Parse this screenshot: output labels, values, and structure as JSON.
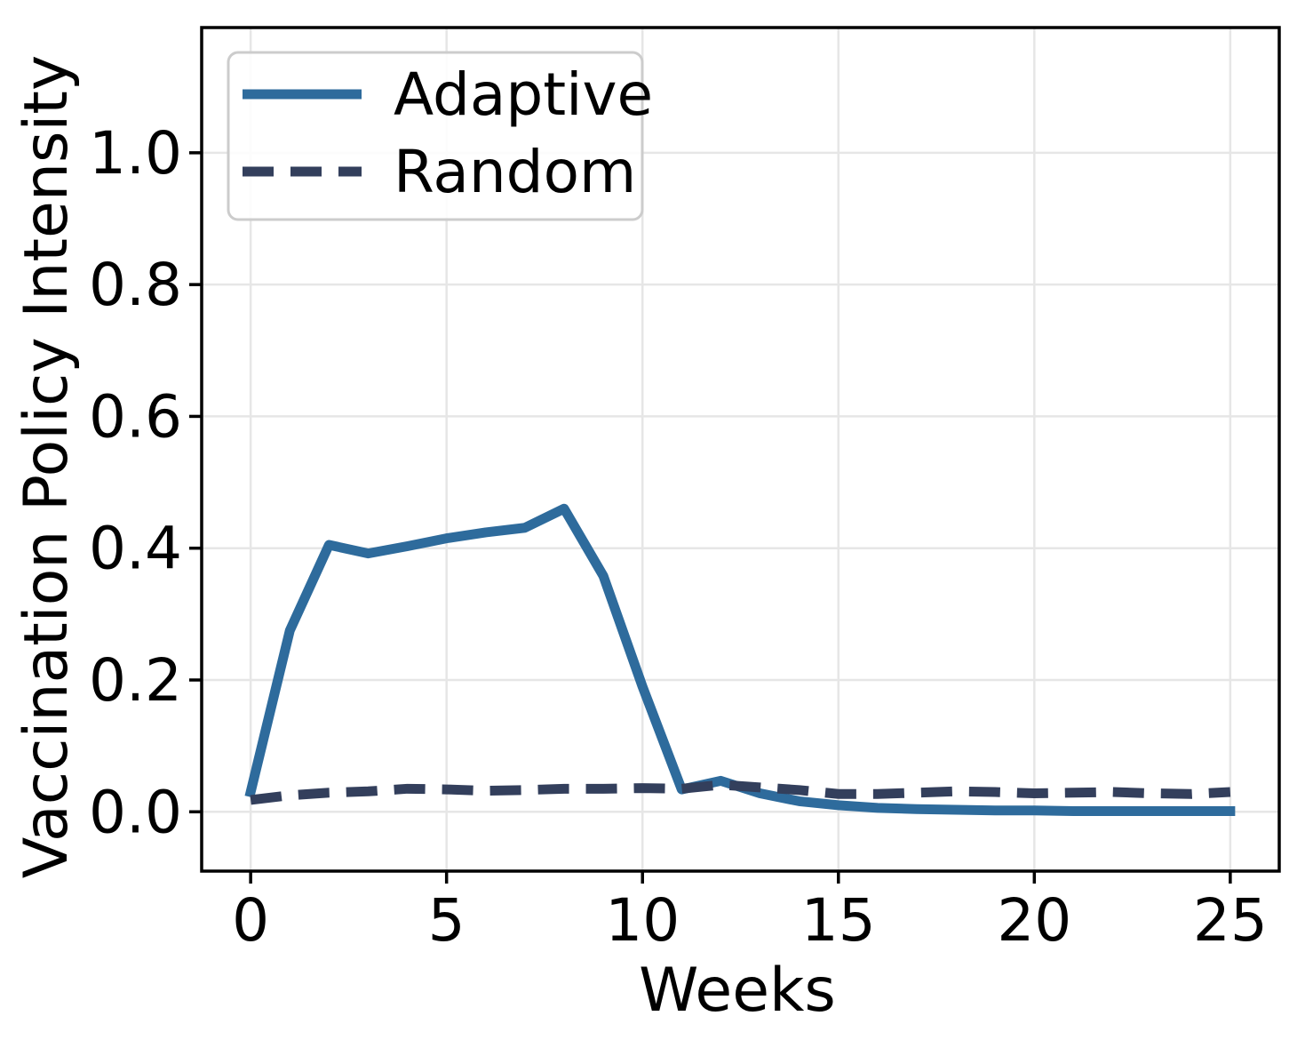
{
  "chart_data": {
    "type": "line",
    "title": "",
    "xlabel": "Weeks",
    "ylabel": "Vaccination Policy Intensity",
    "x": [
      0,
      1,
      2,
      3,
      4,
      5,
      6,
      7,
      8,
      9,
      10,
      11,
      12,
      13,
      14,
      15,
      16,
      17,
      18,
      19,
      20,
      21,
      22,
      23,
      24,
      25
    ],
    "series": [
      {
        "name": "Adaptive",
        "style": "solid",
        "color": "#2e6b9c",
        "values": [
          0.03,
          0.275,
          0.405,
          0.392,
          0.403,
          0.415,
          0.424,
          0.431,
          0.46,
          0.358,
          0.19,
          0.034,
          0.047,
          0.028,
          0.016,
          0.01,
          0.006,
          0.004,
          0.003,
          0.002,
          0.002,
          0.001,
          0.001,
          0.001,
          0.001,
          0.001
        ]
      },
      {
        "name": "Random",
        "style": "dashed",
        "color": "#333f5c",
        "values": [
          0.018,
          0.025,
          0.029,
          0.031,
          0.035,
          0.034,
          0.032,
          0.033,
          0.035,
          0.035,
          0.036,
          0.035,
          0.041,
          0.037,
          0.033,
          0.027,
          0.027,
          0.029,
          0.031,
          0.03,
          0.028,
          0.029,
          0.03,
          0.028,
          0.027,
          0.03
        ]
      }
    ],
    "xlim": [
      -1.25,
      26.25
    ],
    "ylim": [
      -0.09,
      1.19
    ],
    "xticks": [
      0,
      5,
      10,
      15,
      20,
      25
    ],
    "yticks": [
      0.0,
      0.2,
      0.4,
      0.6,
      0.8,
      1.0
    ],
    "grid": true,
    "grid_color": "#e6e6e6",
    "axis_color": "#000000",
    "legend_position": "upper-left"
  }
}
